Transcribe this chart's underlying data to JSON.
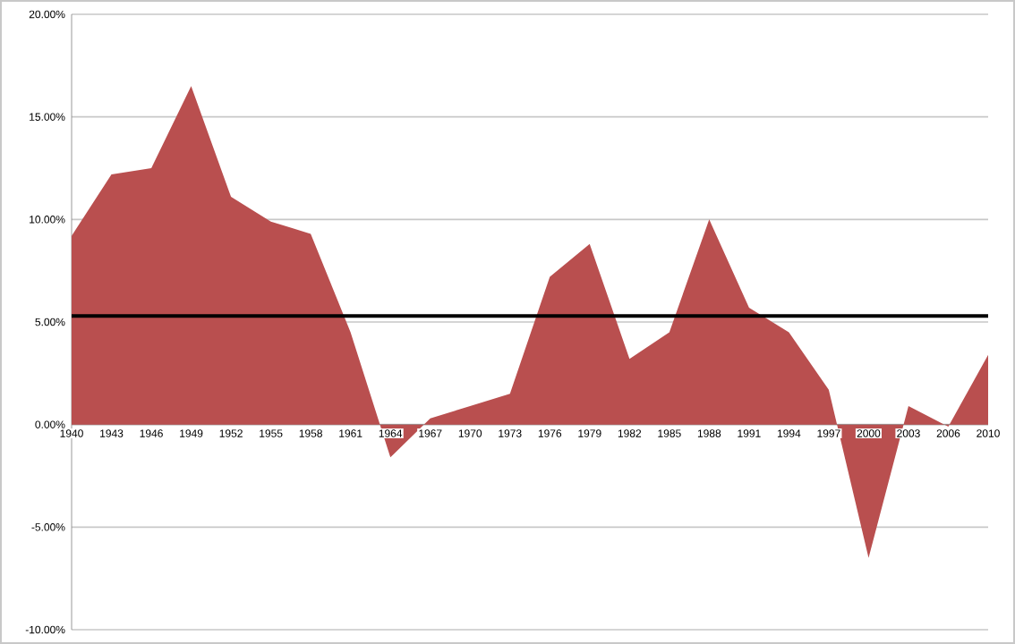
{
  "chart_data": {
    "type": "area",
    "categories": [
      "1940",
      "1943",
      "1946",
      "1949",
      "1952",
      "1955",
      "1958",
      "1961",
      "1964",
      "1967",
      "1970",
      "1973",
      "1976",
      "1979",
      "1982",
      "1985",
      "1988",
      "1991",
      "1994",
      "1997",
      "2000",
      "2003",
      "2006",
      "2010"
    ],
    "values": [
      9.2,
      12.2,
      12.5,
      16.5,
      11.1,
      9.9,
      9.3,
      4.5,
      -1.6,
      0.3,
      0.9,
      1.5,
      7.2,
      8.8,
      3.2,
      4.5,
      10.0,
      5.7,
      4.5,
      1.7,
      -6.5,
      0.9,
      -0.1,
      3.4
    ],
    "color": "#b94f4f",
    "ylim": [
      -10,
      20
    ],
    "yticks": [
      {
        "value": -10,
        "label": "-10.00%"
      },
      {
        "value": -5,
        "label": "-5.00%"
      },
      {
        "value": 0,
        "label": "0.00%"
      },
      {
        "value": 5,
        "label": "5.00%"
      },
      {
        "value": 10,
        "label": "10.00%"
      },
      {
        "value": 15,
        "label": "15.00%"
      },
      {
        "value": 20,
        "label": "20.00%"
      }
    ],
    "grid": "y",
    "ref_lines": [
      {
        "axis": "y",
        "value": 5.3,
        "color": "#000000"
      }
    ]
  }
}
